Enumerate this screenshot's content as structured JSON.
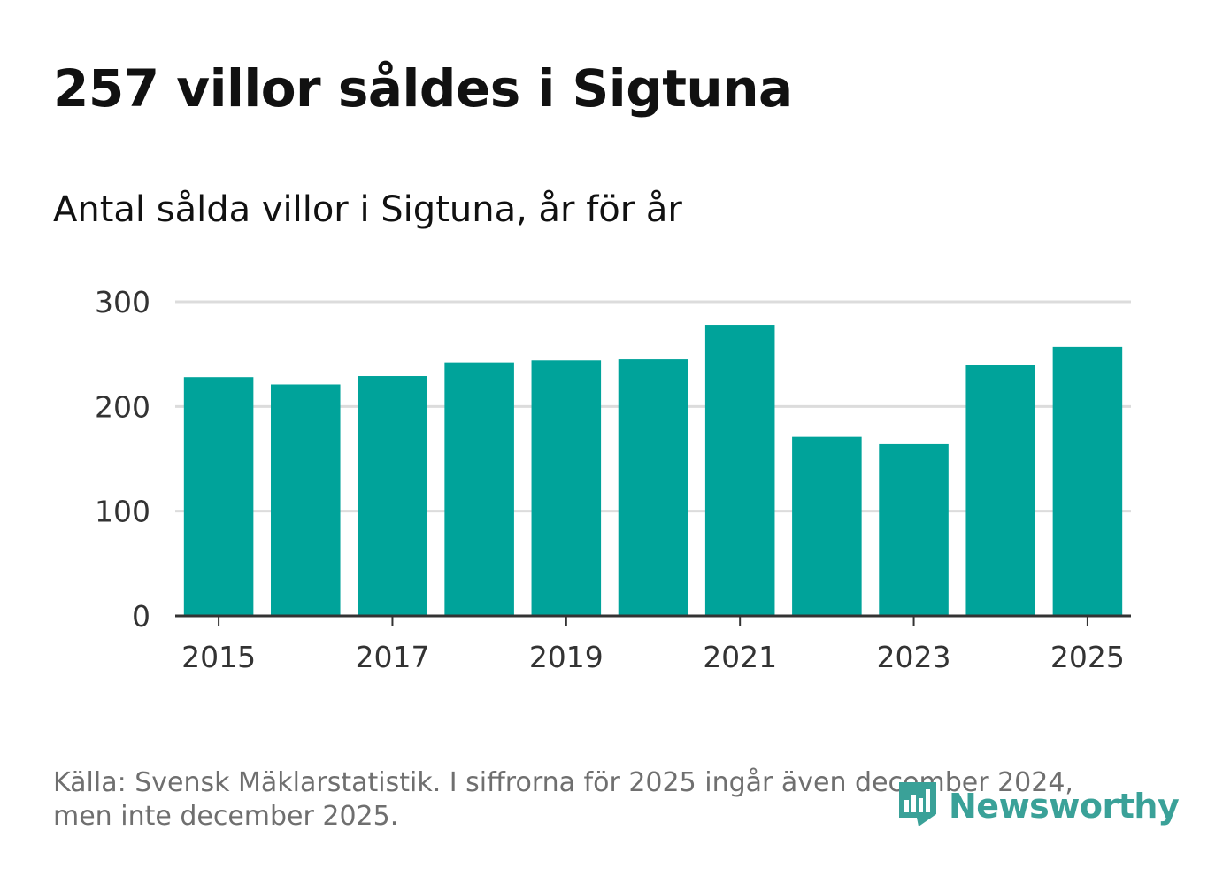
{
  "title": "257 villor såldes i Sigtuna",
  "subtitle": "Antal sålda villor i Sigtuna, år för år",
  "footer": {
    "source_note": "Källa: Svensk Mäklarstatistik. I siffrorna för 2025 ingår även december 2024, men inte december 2025.",
    "brand": "Newsworthy"
  },
  "colors": {
    "bar": "#00a39a",
    "grid": "#dcdcdc",
    "axis": "#333333",
    "brand": "#3aa198"
  },
  "icons": {
    "brand_logo": "newsworthy-logo-icon"
  },
  "chart_data": {
    "type": "bar",
    "title": "Antal sålda villor i Sigtuna, år för år",
    "xlabel": "",
    "ylabel": "",
    "categories": [
      "2015",
      "2016",
      "2017",
      "2018",
      "2019",
      "2020",
      "2021",
      "2022",
      "2023",
      "2024",
      "2025"
    ],
    "values": [
      228,
      221,
      229,
      242,
      244,
      245,
      278,
      171,
      164,
      240,
      257
    ],
    "x_tick_labels": [
      "2015",
      "2017",
      "2019",
      "2021",
      "2023",
      "2025"
    ],
    "y_ticks": [
      0,
      100,
      200,
      300
    ],
    "ylim": [
      0,
      300
    ],
    "grid": true,
    "legend": "none"
  }
}
